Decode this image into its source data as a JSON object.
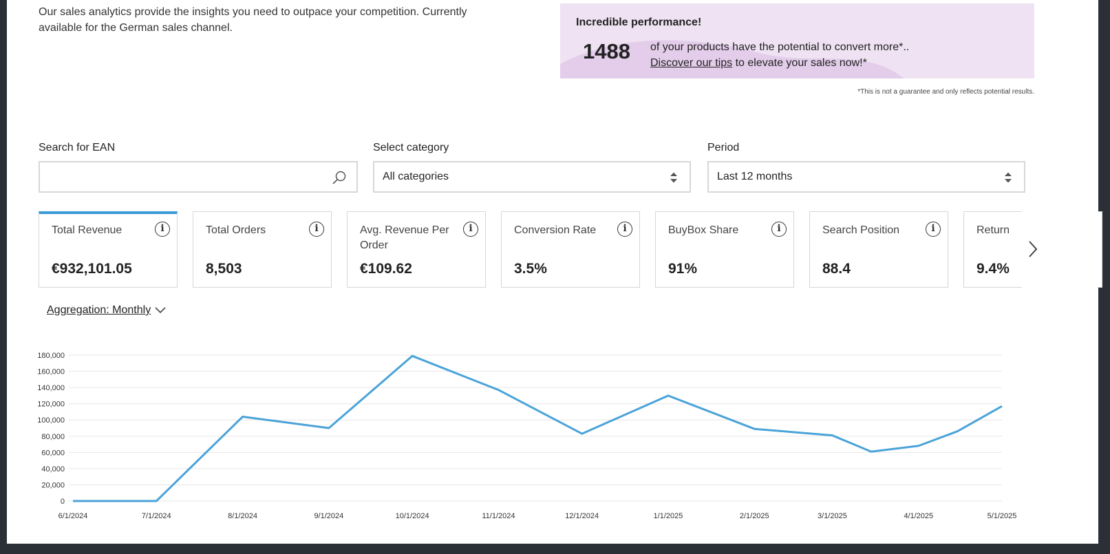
{
  "intro": {
    "text": "Our sales analytics provide the insights you need to outpace your competition. Currently available for the German sales channel."
  },
  "promo": {
    "title": "Incredible performance!",
    "count": "1488",
    "text_line1": "of your products have the potential to convert more*..",
    "link": "Discover our tips",
    "text_line2": " to elevate your sales now!*",
    "disclaimer": "*This is not a guarantee and only reflects potential results."
  },
  "filters": {
    "search_label": "Search for EAN",
    "search_value": "",
    "category_label": "Select category",
    "category_value": "All categories",
    "period_label": "Period",
    "period_value": "Last 12 months"
  },
  "kpis": [
    {
      "label": "Total Revenue",
      "value": "€932,101.05"
    },
    {
      "label": "Total Orders",
      "value": "8,503"
    },
    {
      "label": "Avg. Revenue Per Order",
      "value": "€109.62"
    },
    {
      "label": "Conversion Rate",
      "value": "3.5%"
    },
    {
      "label": "BuyBox Share",
      "value": "91%"
    },
    {
      "label": "Search Position",
      "value": "88.4"
    },
    {
      "label": "Return",
      "value": "9.4%"
    }
  ],
  "aggregation": {
    "label": "Aggregation: Monthly"
  },
  "colors": {
    "accent": "#3b9bd6",
    "line": "#4aa3d9",
    "promo_bg": "#efe3f3"
  },
  "chart_data": {
    "type": "line",
    "title": "",
    "xlabel": "",
    "ylabel": "",
    "ylim": [
      0,
      180000
    ],
    "yticks": [
      0,
      20000,
      40000,
      60000,
      80000,
      100000,
      120000,
      140000,
      160000,
      180000
    ],
    "ytick_labels": [
      "0",
      "20,000",
      "40,000",
      "60,000",
      "80,000",
      "100,000",
      "120,000",
      "140,000",
      "160,000",
      "180,000"
    ],
    "xticks": [
      "6/1/2024",
      "7/1/2024",
      "8/1/2024",
      "9/1/2024",
      "10/1/2024",
      "11/1/2024",
      "12/1/2024",
      "1/1/2025",
      "2/1/2025",
      "3/1/2025",
      "4/1/2025",
      "5/1/2025"
    ],
    "grid": true,
    "x": [
      "6/1/2024",
      "7/1/2024",
      "8/1/2024",
      "9/1/2024",
      "10/1/2024",
      "11/1/2024",
      "12/1/2024",
      "1/1/2025",
      "2/1/2025",
      "3/1/2025",
      "3/15/2025",
      "4/1/2025",
      "4/15/2025",
      "5/1/2025"
    ],
    "series": [
      {
        "values": [
          0,
          0,
          104000,
          90000,
          179000,
          137000,
          83000,
          130000,
          89000,
          81000,
          61000,
          68000,
          86000,
          117000
        ]
      }
    ]
  }
}
